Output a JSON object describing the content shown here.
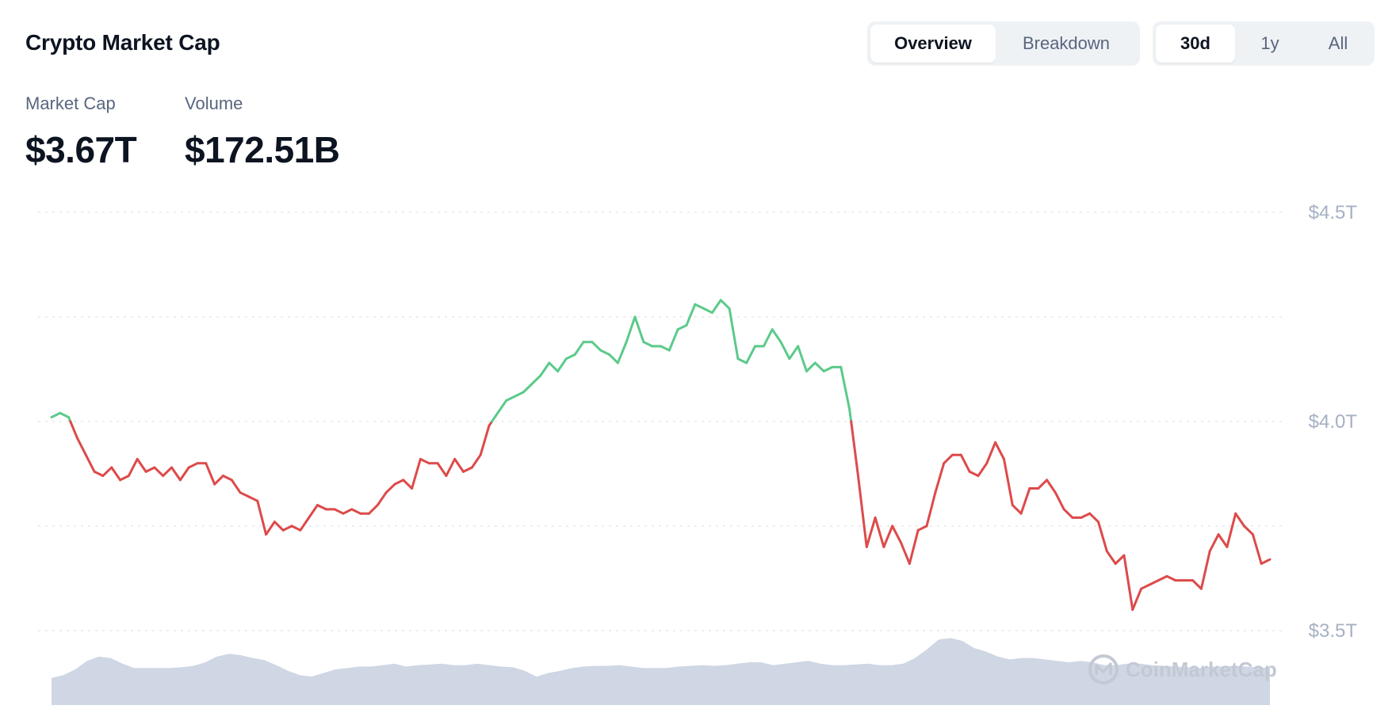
{
  "header": {
    "title": "Crypto Market Cap",
    "view_tabs": [
      {
        "label": "Overview",
        "active": true
      },
      {
        "label": "Breakdown",
        "active": false
      }
    ],
    "range_tabs": [
      {
        "label": "30d",
        "active": true
      },
      {
        "label": "1y",
        "active": false
      },
      {
        "label": "All",
        "active": false
      }
    ]
  },
  "stats": [
    {
      "label": "Market Cap",
      "value": "$3.67T"
    },
    {
      "label": "Volume",
      "value": "$172.51B"
    }
  ],
  "watermark": "CoinMarketCap",
  "colors": {
    "up": "#5bca8a",
    "down": "#dd4a4a",
    "volume": "#cfd6e4",
    "grid": "#e5e8ee",
    "text_muted": "#a6b0c3"
  },
  "chart_data": {
    "type": "line",
    "title": "",
    "xlabel": "",
    "ylabel": "",
    "period": "30d",
    "reference_value": 4.0,
    "ylim": [
      3.5,
      4.5
    ],
    "yticks": [
      {
        "value": 4.5,
        "label": "$4.5T"
      },
      {
        "value": 4.0,
        "label": "$4.0T"
      },
      {
        "value": 3.5,
        "label": "$3.5T"
      }
    ],
    "grid": true,
    "series": [
      {
        "unit": "T USD",
        "values": [
          4.01,
          4.02,
          4.01,
          3.96,
          3.92,
          3.88,
          3.87,
          3.89,
          3.86,
          3.87,
          3.91,
          3.88,
          3.89,
          3.87,
          3.89,
          3.86,
          3.89,
          3.9,
          3.9,
          3.85,
          3.87,
          3.86,
          3.83,
          3.82,
          3.81,
          3.73,
          3.76,
          3.74,
          3.75,
          3.74,
          3.77,
          3.8,
          3.79,
          3.79,
          3.78,
          3.79,
          3.78,
          3.78,
          3.8,
          3.83,
          3.85,
          3.86,
          3.84,
          3.91,
          3.9,
          3.9,
          3.87,
          3.91,
          3.88,
          3.89,
          3.92,
          3.99,
          4.02,
          4.05,
          4.06,
          4.07,
          4.09,
          4.11,
          4.14,
          4.12,
          4.15,
          4.16,
          4.19,
          4.19,
          4.17,
          4.16,
          4.14,
          4.19,
          4.25,
          4.19,
          4.18,
          4.18,
          4.17,
          4.22,
          4.23,
          4.28,
          4.27,
          4.26,
          4.29,
          4.27,
          4.15,
          4.14,
          4.18,
          4.18,
          4.22,
          4.19,
          4.15,
          4.18,
          4.12,
          4.14,
          4.12,
          4.13,
          4.13,
          4.03,
          3.87,
          3.7,
          3.77,
          3.7,
          3.75,
          3.71,
          3.66,
          3.74,
          3.75,
          3.83,
          3.9,
          3.92,
          3.92,
          3.88,
          3.87,
          3.9,
          3.95,
          3.91,
          3.8,
          3.78,
          3.84,
          3.84,
          3.86,
          3.83,
          3.79,
          3.77,
          3.77,
          3.78,
          3.76,
          3.69,
          3.66,
          3.68,
          3.55,
          3.6,
          3.61,
          3.62,
          3.63,
          3.62,
          3.62,
          3.62,
          3.6,
          3.69,
          3.73,
          3.7,
          3.78,
          3.75,
          3.73,
          3.66,
          3.67
        ]
      },
      {
        "name": "Volume",
        "values": [
          0.38,
          0.42,
          0.5,
          0.62,
          0.68,
          0.66,
          0.58,
          0.52,
          0.52,
          0.52,
          0.52,
          0.53,
          0.55,
          0.6,
          0.68,
          0.72,
          0.7,
          0.66,
          0.63,
          0.56,
          0.48,
          0.42,
          0.4,
          0.45,
          0.5,
          0.52,
          0.54,
          0.54,
          0.56,
          0.58,
          0.54,
          0.56,
          0.57,
          0.58,
          0.56,
          0.56,
          0.58,
          0.56,
          0.54,
          0.53,
          0.48,
          0.4,
          0.45,
          0.48,
          0.52,
          0.54,
          0.55,
          0.55,
          0.56,
          0.54,
          0.52,
          0.52,
          0.52,
          0.54,
          0.55,
          0.56,
          0.55,
          0.56,
          0.58,
          0.6,
          0.6,
          0.56,
          0.58,
          0.6,
          0.62,
          0.58,
          0.56,
          0.56,
          0.57,
          0.58,
          0.56,
          0.56,
          0.58,
          0.66,
          0.78,
          0.92,
          0.94,
          0.9,
          0.8,
          0.75,
          0.68,
          0.64,
          0.66,
          0.66,
          0.64,
          0.62,
          0.6,
          0.62,
          0.6,
          0.56,
          0.56,
          0.58,
          0.58,
          0.56,
          0.55,
          0.54,
          0.53,
          0.52,
          0.54,
          0.54,
          0.55,
          0.54,
          0.53,
          0.52
        ]
      }
    ]
  }
}
